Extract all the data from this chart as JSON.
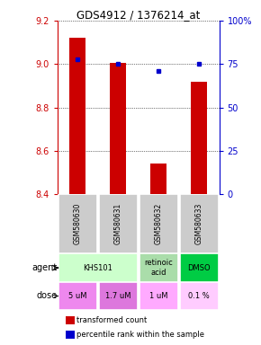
{
  "title": "GDS4912 / 1376214_at",
  "samples": [
    "GSM580630",
    "GSM580631",
    "GSM580632",
    "GSM580633"
  ],
  "bar_values": [
    9.12,
    9.005,
    8.54,
    8.92
  ],
  "bar_base": 8.4,
  "percentile_values": [
    78,
    75,
    71,
    75
  ],
  "ylim_left": [
    8.4,
    9.2
  ],
  "ylim_right": [
    0,
    100
  ],
  "yticks_left": [
    8.4,
    8.6,
    8.8,
    9.0,
    9.2
  ],
  "yticks_right": [
    0,
    25,
    50,
    75,
    100
  ],
  "ytick_labels_right": [
    "0",
    "25",
    "50",
    "75",
    "100%"
  ],
  "bar_color": "#cc0000",
  "dot_color": "#0000cc",
  "agent_configs": [
    [
      0,
      1,
      "KHS101",
      "#ccffcc"
    ],
    [
      2,
      2,
      "retinoic\nacid",
      "#aaddaa"
    ],
    [
      3,
      3,
      "DMSO",
      "#00cc44"
    ]
  ],
  "dose_configs": [
    [
      0,
      0,
      "5 uM",
      "#ee88ee"
    ],
    [
      1,
      1,
      "1.7 uM",
      "#dd77dd"
    ],
    [
      2,
      2,
      "1 uM",
      "#ffaaff"
    ],
    [
      3,
      3,
      "0.1 %",
      "#ffccff"
    ]
  ],
  "sample_bg_color": "#cccccc",
  "legend_bar_color": "#cc0000",
  "legend_dot_color": "#0000cc"
}
